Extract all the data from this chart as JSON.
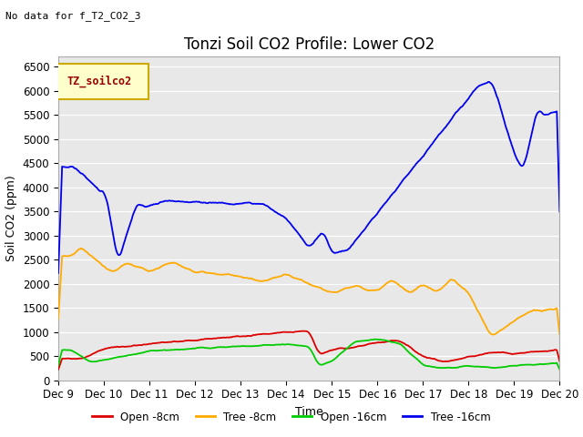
{
  "title": "Tonzi Soil CO2 Profile: Lower CO2",
  "subtitle": "No data for f_T2_CO2_3",
  "legend_label": "TZ_soilco2",
  "xlabel": "Time",
  "ylabel": "Soil CO2 (ppm)",
  "ylim": [
    0,
    6700
  ],
  "yticks": [
    0,
    500,
    1000,
    1500,
    2000,
    2500,
    3000,
    3500,
    4000,
    4500,
    5000,
    5500,
    6000,
    6500
  ],
  "xticklabels": [
    "Dec 9",
    "Dec 10",
    "Dec 11",
    "Dec 12",
    "Dec 13",
    "Dec 14",
    "Dec 15",
    "Dec 16",
    "Dec 17",
    "Dec 18",
    "Dec 19",
    "Dec 20"
  ],
  "line_colors": {
    "open_8cm": "#dd0000",
    "tree_8cm": "#ffaa00",
    "open_16cm": "#00cc00",
    "tree_16cm": "#0000ee"
  },
  "legend_entries": [
    "Open -8cm",
    "Tree -8cm",
    "Open -16cm",
    "Tree -16cm"
  ],
  "plot_bg_color": "#e8e8e8",
  "grid_color": "#ffffff",
  "title_fontsize": 12,
  "axis_label_fontsize": 9,
  "tick_fontsize": 8.5,
  "legend_box_facecolor": "#ffffcc",
  "legend_box_edgecolor": "#ccaa00",
  "legend_text_color": "#990000"
}
